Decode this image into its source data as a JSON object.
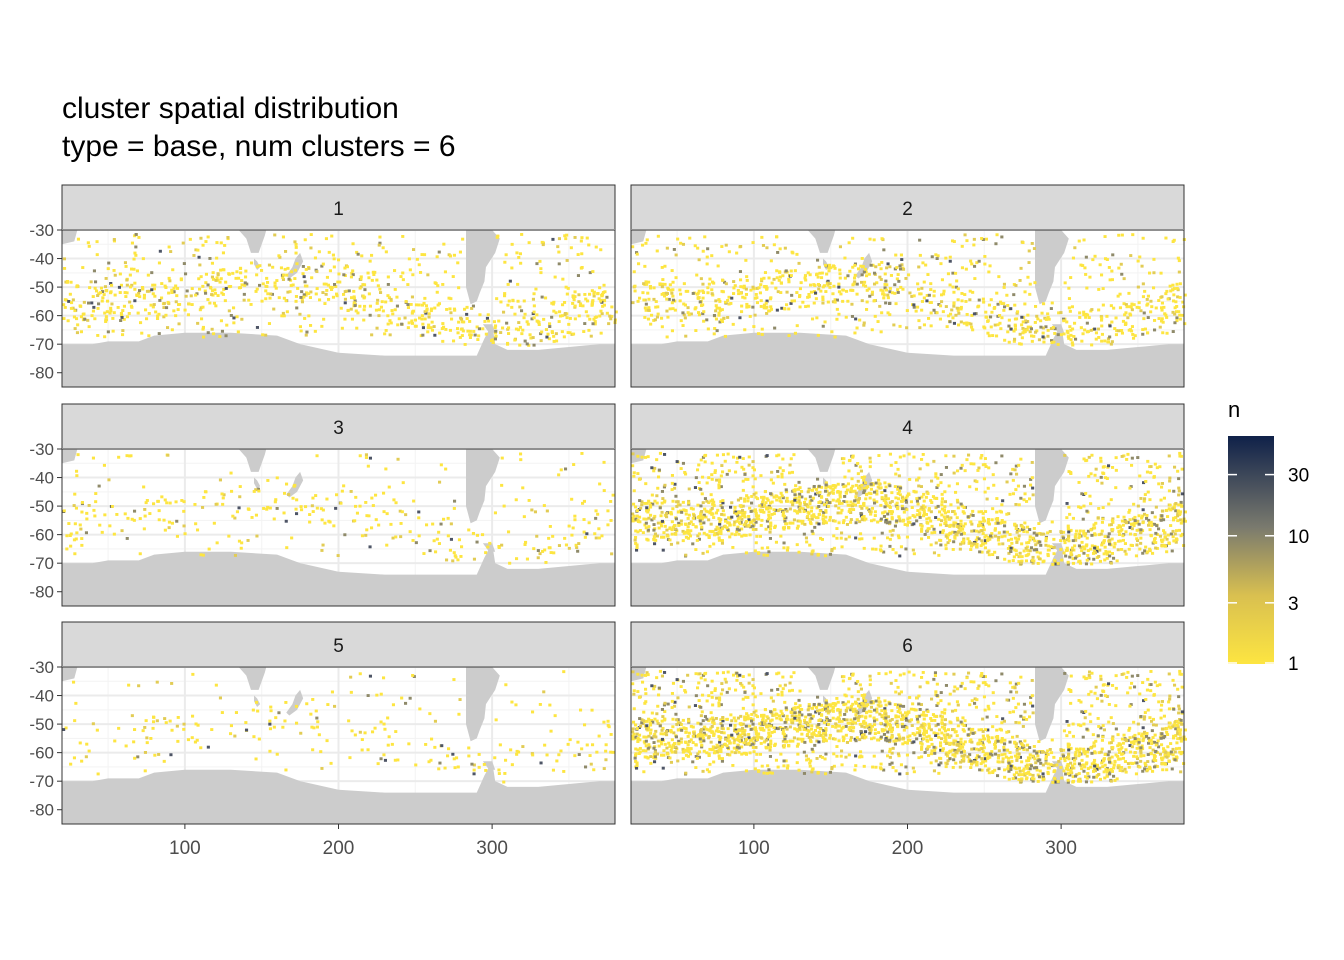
{
  "chart_data": {
    "type": "heatmap",
    "title": "cluster spatial distribution",
    "subtitle": "type = base, num clusters = 6",
    "xlabel": "",
    "ylabel": "",
    "facets": [
      "1",
      "2",
      "3",
      "4",
      "5",
      "6"
    ],
    "facet_layout": {
      "rows": 3,
      "cols": 2
    },
    "xlim": [
      20,
      380
    ],
    "ylim": [
      -85,
      -30
    ],
    "x_ticks": [
      100,
      200,
      300
    ],
    "x_tick_labels": [
      "100",
      "200",
      "300"
    ],
    "y_ticks": [
      -30,
      -40,
      -50,
      -60,
      -70,
      -80
    ],
    "y_tick_labels": [
      "-30",
      "-40",
      "-50",
      "-60",
      "-70",
      "-80"
    ],
    "grid": true,
    "legend": {
      "title": "n",
      "position": "right",
      "scale": "log",
      "range": [
        1,
        60
      ],
      "ticks": [
        1,
        3,
        10,
        30
      ],
      "tick_labels": [
        "1",
        "3",
        "10",
        "30"
      ],
      "colors": [
        "#fde541",
        "#7a7a6e",
        "#0f2149"
      ]
    },
    "land_color": "#cccccc",
    "facet_density": {
      "1": 0.38,
      "2": 0.42,
      "3": 0.14,
      "4": 0.78,
      "5": 0.1,
      "6": 0.95
    }
  }
}
